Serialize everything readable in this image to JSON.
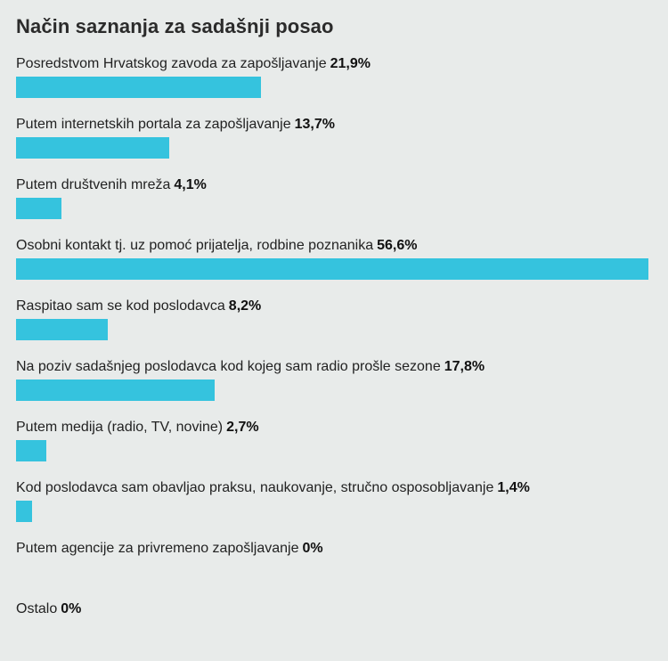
{
  "chart_data": {
    "type": "bar",
    "orientation": "horizontal",
    "title": "Način saznanja za sadašnji posao",
    "categories": [
      "Posredstvom  Hrvatskog zavoda za zapošljavanje",
      "Putem internetskih portala za zapošljavanje",
      "Putem društvenih mreža",
      "Osobni kontakt tj. uz pomoć prijatelja, rodbine poznanika",
      "Raspitao sam se kod poslodavca",
      "Na poziv sadašnjeg poslodavca kod kojeg sam radio prošle sezone",
      "Putem medija (radio, TV, novine)",
      "Kod poslodavca sam obavljao praksu, naukovanje, stručno osposobljavanje",
      "Putem agencije za privremeno zapošljavanje",
      "Ostalo"
    ],
    "values": [
      21.9,
      13.7,
      4.1,
      56.6,
      8.2,
      17.8,
      2.7,
      1.4,
      0,
      0
    ],
    "value_labels": [
      "21,9%",
      "13,7%",
      "4,1%",
      "56,6%",
      "8,2%",
      "17,8%",
      "2,7%",
      "1,4%",
      "0%",
      "0%"
    ],
    "xlim": [
      0,
      56.6
    ],
    "bar_color": "#35c3de",
    "grid": false,
    "legend": "none"
  }
}
